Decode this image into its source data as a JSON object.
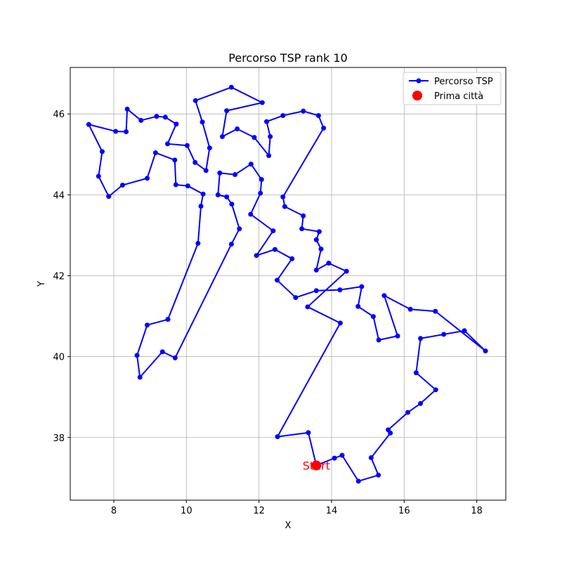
{
  "chart_data": {
    "type": "line",
    "title": "Percorso TSP rank 10",
    "xlabel": "X",
    "ylabel": "Y",
    "xlim": [
      6.8,
      18.8
    ],
    "ylim": [
      36.45,
      47.15
    ],
    "xticks": [
      8,
      10,
      12,
      14,
      16,
      18
    ],
    "yticks": [
      38,
      40,
      42,
      44,
      46
    ],
    "grid": true,
    "legend_position": "top-right",
    "colors": {
      "route": "#0000ff",
      "start": "#ff0000",
      "grid": "#b0b0b0"
    },
    "series": [
      {
        "name": "Percorso TSP",
        "marker": "circle",
        "points": [
          [
            13.58,
            37.31
          ],
          [
            14.08,
            37.49
          ],
          [
            14.29,
            37.56
          ],
          [
            14.74,
            36.92
          ],
          [
            15.29,
            37.07
          ],
          [
            15.09,
            37.5
          ],
          [
            15.62,
            38.11
          ],
          [
            15.56,
            38.19
          ],
          [
            16.1,
            38.62
          ],
          [
            16.45,
            38.84
          ],
          [
            16.87,
            39.18
          ],
          [
            16.33,
            39.6
          ],
          [
            16.45,
            40.45
          ],
          [
            17.09,
            40.55
          ],
          [
            17.66,
            40.64
          ],
          [
            18.24,
            40.14
          ],
          [
            16.86,
            41.12
          ],
          [
            16.17,
            41.17
          ],
          [
            15.45,
            41.51
          ],
          [
            15.82,
            40.51
          ],
          [
            15.3,
            40.41
          ],
          [
            15.15,
            40.99
          ],
          [
            14.73,
            41.24
          ],
          [
            14.83,
            41.73
          ],
          [
            14.23,
            41.65
          ],
          [
            13.58,
            41.63
          ],
          [
            13.01,
            41.46
          ],
          [
            12.5,
            41.89
          ],
          [
            12.91,
            42.42
          ],
          [
            12.44,
            42.65
          ],
          [
            11.93,
            42.5
          ],
          [
            12.39,
            43.11
          ],
          [
            11.77,
            43.52
          ],
          [
            12.04,
            44.04
          ],
          [
            12.07,
            44.38
          ],
          [
            11.78,
            44.76
          ],
          [
            11.34,
            44.5
          ],
          [
            10.92,
            44.54
          ],
          [
            10.87,
            44.0
          ],
          [
            11.11,
            43.95
          ],
          [
            11.25,
            43.77
          ],
          [
            11.46,
            43.16
          ],
          [
            11.24,
            42.78
          ],
          [
            9.69,
            39.97
          ],
          [
            9.34,
            40.12
          ],
          [
            8.72,
            39.49
          ],
          [
            8.64,
            40.03
          ],
          [
            8.92,
            40.78
          ],
          [
            9.49,
            40.92
          ],
          [
            10.32,
            42.8
          ],
          [
            10.4,
            43.72
          ],
          [
            10.46,
            44.02
          ],
          [
            10.04,
            44.22
          ],
          [
            9.71,
            44.25
          ],
          [
            9.68,
            44.86
          ],
          [
            9.15,
            45.04
          ],
          [
            8.92,
            44.41
          ],
          [
            8.24,
            44.24
          ],
          [
            7.86,
            43.96
          ],
          [
            7.58,
            44.46
          ],
          [
            7.68,
            45.07
          ],
          [
            7.31,
            45.74
          ],
          [
            8.05,
            45.57
          ],
          [
            8.34,
            45.56
          ],
          [
            8.37,
            46.12
          ],
          [
            8.75,
            45.84
          ],
          [
            9.18,
            45.94
          ],
          [
            9.42,
            45.92
          ],
          [
            9.72,
            45.75
          ],
          [
            9.48,
            45.26
          ],
          [
            10.02,
            45.22
          ],
          [
            10.24,
            44.8
          ],
          [
            10.54,
            44.6
          ],
          [
            10.64,
            45.16
          ],
          [
            10.44,
            45.8
          ],
          [
            10.25,
            46.33
          ],
          [
            11.24,
            46.66
          ],
          [
            12.09,
            46.28
          ],
          [
            11.11,
            46.08
          ],
          [
            10.99,
            45.44
          ],
          [
            11.4,
            45.63
          ],
          [
            11.87,
            45.42
          ],
          [
            12.27,
            44.97
          ],
          [
            12.31,
            45.44
          ],
          [
            12.21,
            45.81
          ],
          [
            12.66,
            45.96
          ],
          [
            13.22,
            46.07
          ],
          [
            13.64,
            45.96
          ],
          [
            13.78,
            45.65
          ],
          [
            12.66,
            43.95
          ],
          [
            12.71,
            43.71
          ],
          [
            13.22,
            43.48
          ],
          [
            13.18,
            43.16
          ],
          [
            13.66,
            43.09
          ],
          [
            13.58,
            42.89
          ],
          [
            13.71,
            42.66
          ],
          [
            13.58,
            42.14
          ],
          [
            13.92,
            42.31
          ],
          [
            14.41,
            42.11
          ],
          [
            13.34,
            41.23
          ],
          [
            14.24,
            40.83
          ],
          [
            12.51,
            38.02
          ],
          [
            13.36,
            38.12
          ],
          [
            13.58,
            37.31
          ]
        ]
      },
      {
        "name": "Prima città",
        "marker": "circle",
        "points": [
          [
            13.58,
            37.31
          ]
        ]
      }
    ],
    "annotations": [
      {
        "text": "Start",
        "x": 13.58,
        "y": 37.31
      }
    ]
  }
}
